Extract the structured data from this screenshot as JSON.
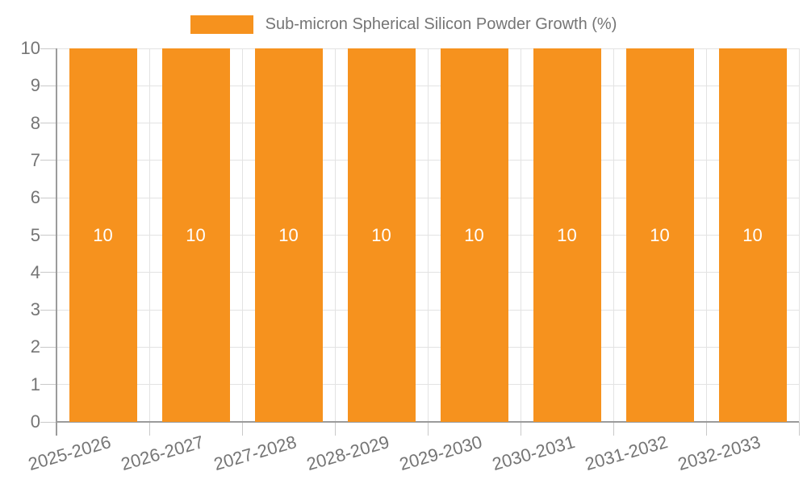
{
  "chart_data": {
    "type": "bar",
    "title": "Sub-micron Spherical Silicon Powder Growth (%)",
    "categories": [
      "2025-2026",
      "2026-2027",
      "2027-2028",
      "2028-2029",
      "2029-2030",
      "2030-2031",
      "2031-2032",
      "2032-2033"
    ],
    "values": [
      10,
      10,
      10,
      10,
      10,
      10,
      10,
      10
    ],
    "data_labels": [
      "10",
      "10",
      "10",
      "10",
      "10",
      "10",
      "10",
      "10"
    ],
    "xlabel": "",
    "ylabel": "",
    "ylim": [
      0,
      10
    ],
    "yticks": [
      0,
      1,
      2,
      3,
      4,
      5,
      6,
      7,
      8,
      9,
      10
    ],
    "grid": true,
    "legend_position": "top-center",
    "x_label_rotation_deg": -16,
    "colors": {
      "bar": "#F6921E",
      "bar_label": "#FFFFFF",
      "axis_line": "#9B9B9B",
      "grid_line": "#E3E3E3",
      "tick_line": "#C9C9C9",
      "text": "#757575",
      "background": "#FFFFFF"
    }
  }
}
